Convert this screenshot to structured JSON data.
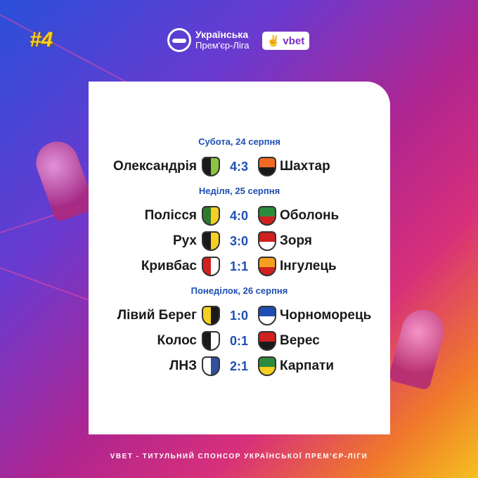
{
  "header": {
    "round": "#4",
    "league_line1": "Українська",
    "league_line2": "Прем'єр-Ліга",
    "sponsor": "vbet"
  },
  "days": [
    {
      "date": "Субота, 24 серпня",
      "matches": [
        {
          "home": "Олександрія",
          "score": "4:3",
          "away": "Шахтар",
          "home_color": "#1a1a1a",
          "home_color2": "#8bc43f",
          "away_color": "#f26a21",
          "away_color2": "#1a1a1a"
        }
      ]
    },
    {
      "date": "Неділя, 25 серпня",
      "matches": [
        {
          "home": "Полісся",
          "score": "4:0",
          "away": "Оболонь",
          "home_color": "#2e7a2e",
          "home_color2": "#f5d020",
          "away_color": "#2e8b3e",
          "away_color2": "#d02020"
        },
        {
          "home": "Рух",
          "score": "3:0",
          "away": "Зоря",
          "home_color": "#1a1a1a",
          "home_color2": "#f5d020",
          "away_color": "#d02020",
          "away_color2": "#ffffff"
        },
        {
          "home": "Кривбас",
          "score": "1:1",
          "away": "Інгулець",
          "home_color": "#d02020",
          "home_color2": "#ffffff",
          "away_color": "#f5a020",
          "away_color2": "#d02020"
        }
      ]
    },
    {
      "date": "Понеділок, 26 серпня",
      "matches": [
        {
          "home": "Лівий Берег",
          "score": "1:0",
          "away": "Чорноморець",
          "home_color": "#f5d020",
          "home_color2": "#1a1a1a",
          "away_color": "#1f4fb3",
          "away_color2": "#ffffff"
        },
        {
          "home": "Колос",
          "score": "0:1",
          "away": "Верес",
          "home_color": "#1a1a1a",
          "home_color2": "#ffffff",
          "away_color": "#d02020",
          "away_color2": "#1a1a1a"
        },
        {
          "home": "ЛНЗ",
          "score": "2:1",
          "away": "Карпати",
          "home_color": "#ffffff",
          "home_color2": "#3050a0",
          "away_color": "#2e8b3e",
          "away_color2": "#f5d020"
        }
      ]
    }
  ],
  "footer": "VBET - ТИТУЛЬНИЙ СПОНСОР УКРАЇНСЬКОЇ ПРЕМ'ЄР-ЛІГИ"
}
